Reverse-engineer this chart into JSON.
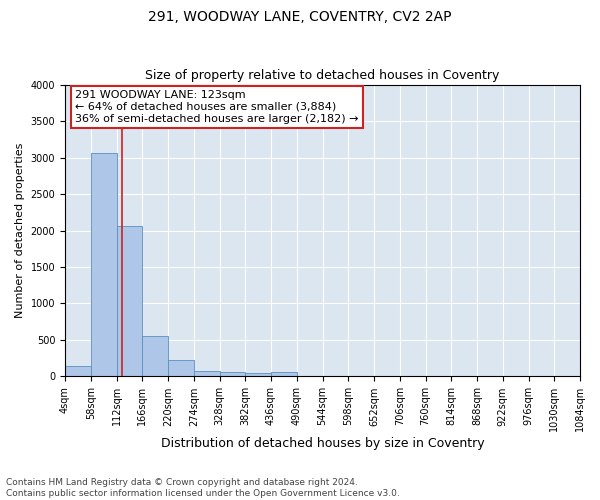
{
  "title_line1": "291, WOODWAY LANE, COVENTRY, CV2 2AP",
  "title_line2": "Size of property relative to detached houses in Coventry",
  "xlabel": "Distribution of detached houses by size in Coventry",
  "ylabel": "Number of detached properties",
  "bin_edges": [
    4,
    58,
    112,
    166,
    220,
    274,
    328,
    382,
    436,
    490,
    544,
    598,
    652,
    706,
    760,
    814,
    868,
    922,
    976,
    1030,
    1084
  ],
  "bin_counts": [
    150,
    3060,
    2060,
    560,
    220,
    75,
    55,
    45,
    55,
    0,
    0,
    0,
    0,
    0,
    0,
    0,
    0,
    0,
    0,
    0
  ],
  "bar_color": "#aec6e8",
  "bar_edge_color": "#5a8fc0",
  "property_size": 123,
  "vline_color": "#cc2222",
  "annotation_text": "291 WOODWAY LANE: 123sqm\n← 64% of detached houses are smaller (3,884)\n36% of semi-detached houses are larger (2,182) →",
  "annotation_box_color": "white",
  "annotation_box_edge": "#cc2222",
  "ylim": [
    0,
    4000
  ],
  "yticks": [
    0,
    500,
    1000,
    1500,
    2000,
    2500,
    3000,
    3500,
    4000
  ],
  "background_color": "#dce6f0",
  "footer_line1": "Contains HM Land Registry data © Crown copyright and database right 2024.",
  "footer_line2": "Contains public sector information licensed under the Open Government Licence v3.0.",
  "title_fontsize": 10,
  "subtitle_fontsize": 9,
  "tick_label_fontsize": 7,
  "ylabel_fontsize": 8,
  "xlabel_fontsize": 9,
  "annotation_fontsize": 8,
  "footer_fontsize": 6.5
}
